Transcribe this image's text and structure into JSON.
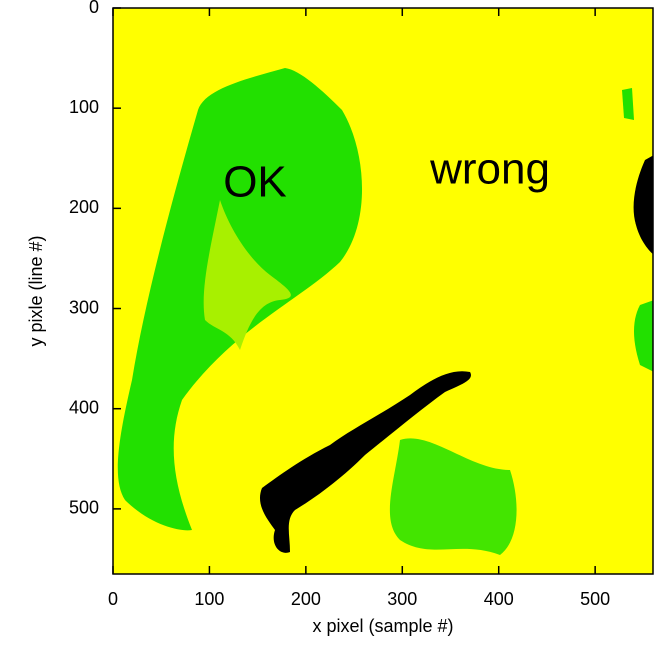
{
  "chart_data": {
    "type": "image",
    "x_label": "x pixel (sample #)",
    "y_label": "y pixle (line #)",
    "xlim": [
      0,
      560
    ],
    "ylim": [
      0,
      565
    ],
    "y_inverted": true,
    "xticks": [
      0,
      100,
      200,
      300,
      400,
      500
    ],
    "yticks": [
      0,
      100,
      200,
      300,
      400,
      500
    ],
    "annotations": [
      "OK",
      "wrong"
    ]
  }
}
